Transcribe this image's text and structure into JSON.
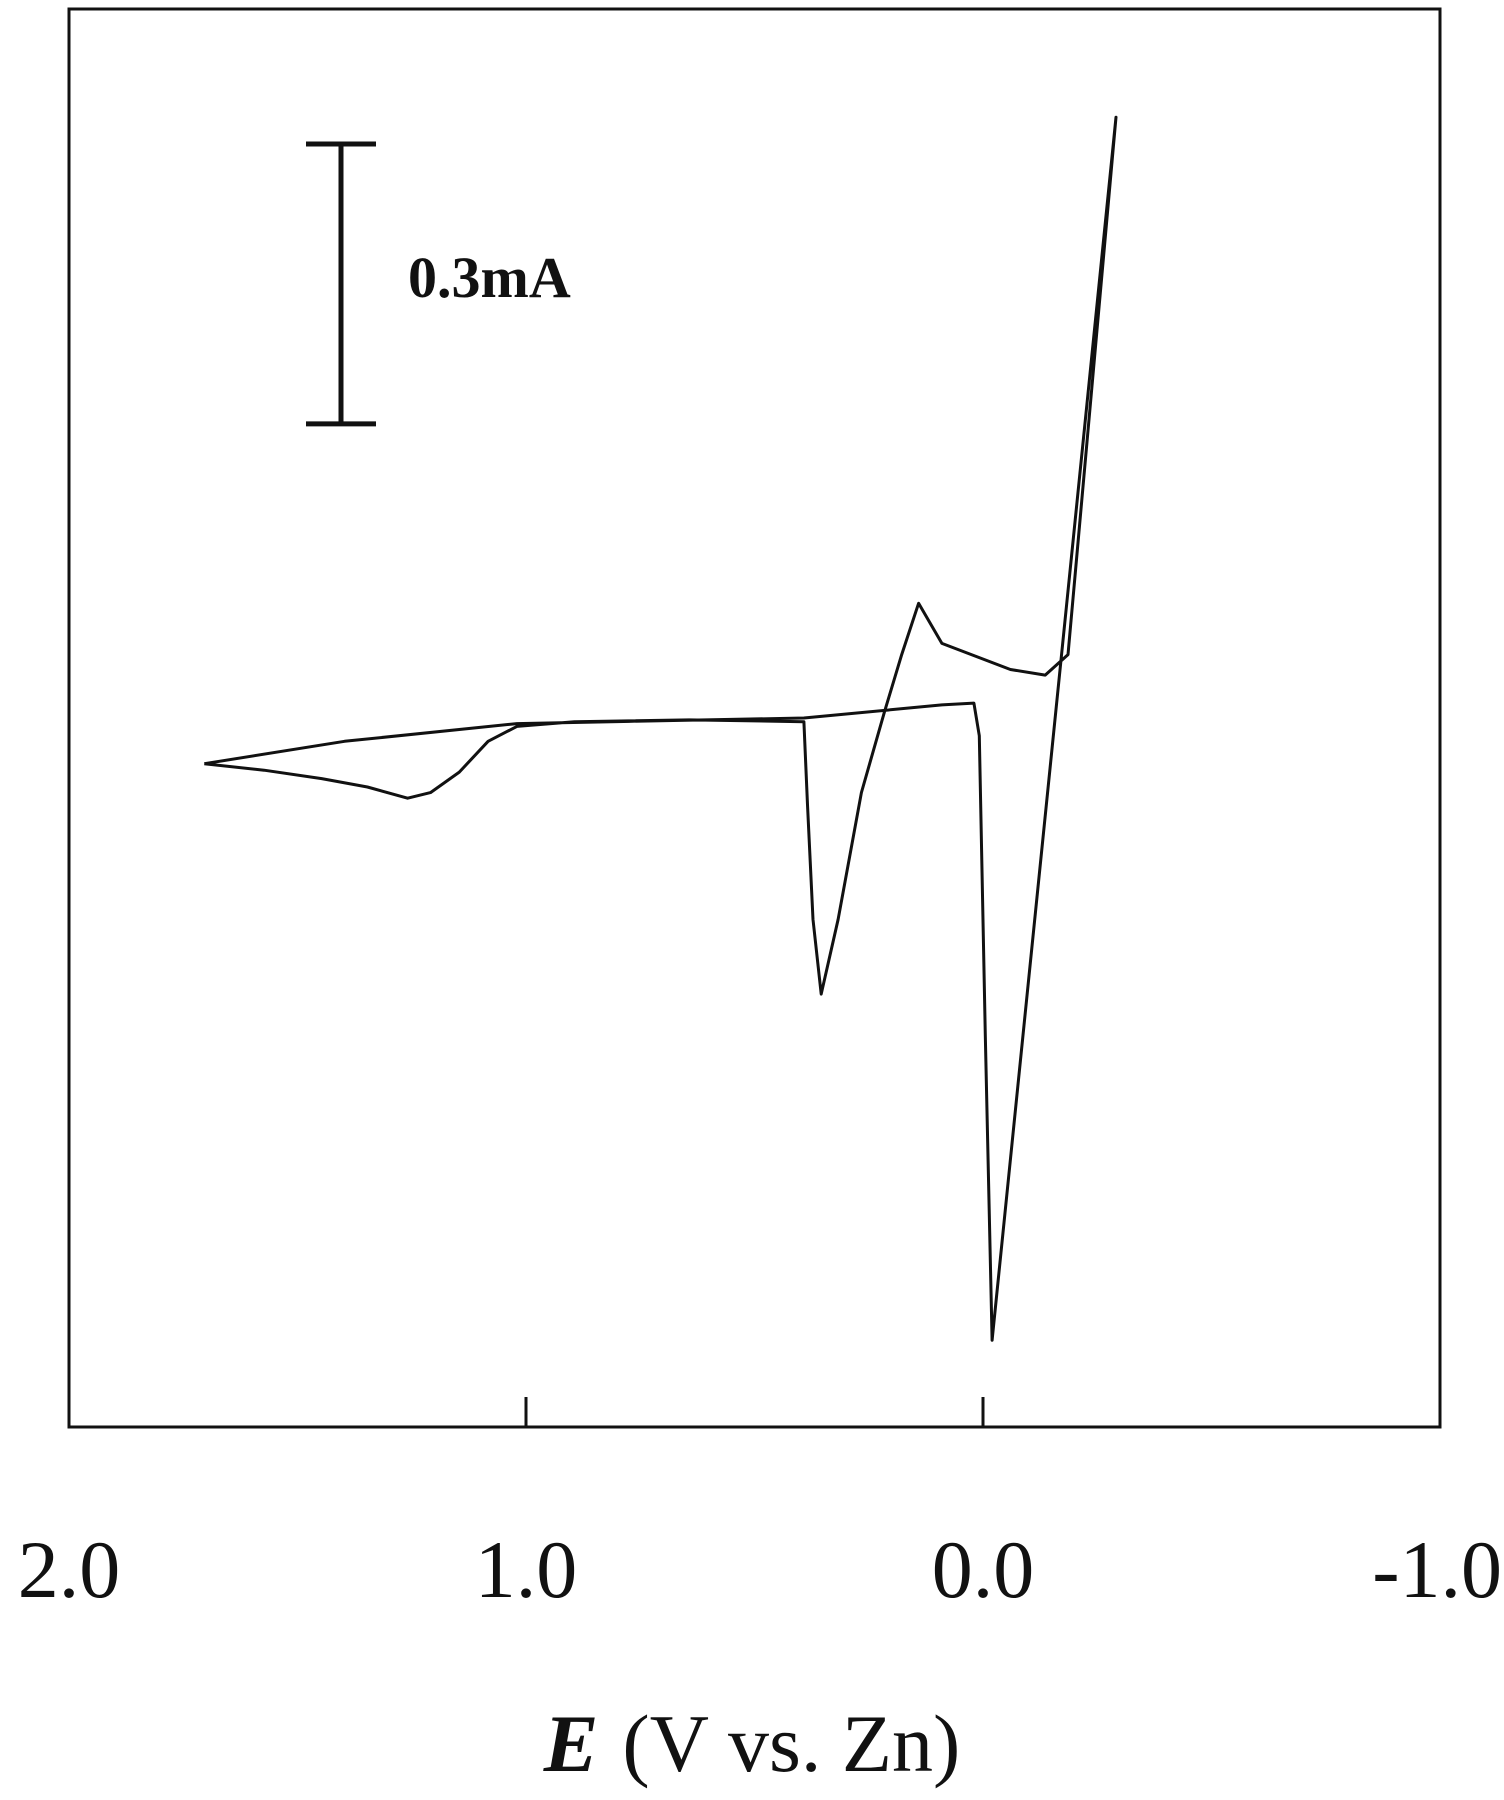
{
  "chart_data": {
    "type": "line",
    "xlabel": {
      "symbol": "E",
      "unit": "(V vs. Zn)"
    },
    "xlim": [
      2.0,
      -1.0
    ],
    "xticks": [
      {
        "value": 2,
        "label": "2.0"
      },
      {
        "value": 1,
        "label": "1.0"
      },
      {
        "value": 0,
        "label": "0.0"
      },
      {
        "value": -1,
        "label": "-1.0"
      }
    ],
    "ylim": [
      -0.76,
      0.76
    ],
    "scale_bar": {
      "value": 0.3,
      "label": "0.3mA"
    },
    "series": [
      {
        "color": "#111111",
        "x": [
          1.704,
          1.397,
          1.02,
          0.392,
          0.09,
          0.02,
          0.008,
          -0.005,
          -0.02,
          -0.291,
          -0.186,
          -0.136,
          -0.06,
          0.09,
          0.141,
          0.178,
          0.216,
          0.266,
          0.317,
          0.354,
          0.372,
          0.384,
          0.392,
          0.643,
          0.894,
          1.02,
          1.083,
          1.146,
          1.209,
          1.259,
          1.347,
          1.447,
          1.573,
          1.704
        ],
        "values": [
          -0.049,
          -0.025,
          -0.006,
          0,
          0.014,
          0.016,
          -0.019,
          -0.34,
          -0.667,
          0.644,
          0.068,
          0.046,
          0.052,
          0.08,
          0.123,
          0.068,
          0.006,
          -0.08,
          -0.216,
          -0.296,
          -0.216,
          -0.093,
          -0.004,
          -0.002,
          -0.004,
          -0.009,
          -0.025,
          -0.058,
          -0.08,
          -0.086,
          -0.074,
          -0.065,
          -0.056,
          -0.049
        ]
      }
    ]
  }
}
